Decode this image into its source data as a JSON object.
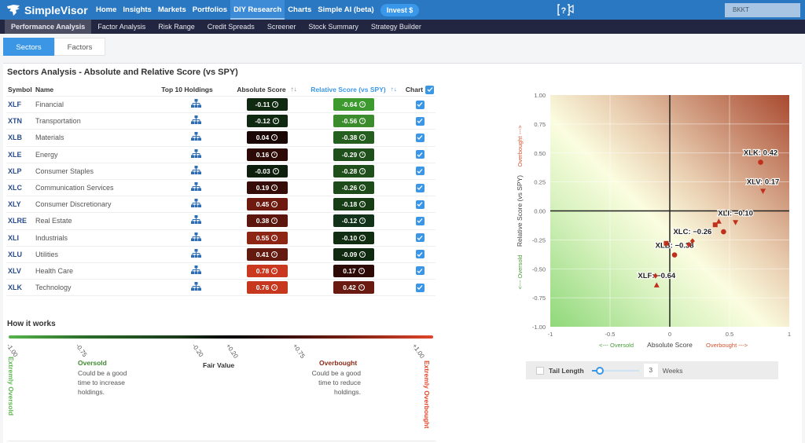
{
  "topnav": {
    "brand": "SimpleVisor",
    "items": [
      {
        "label": "Home",
        "active": false
      },
      {
        "label": "Insights",
        "active": false
      },
      {
        "label": "Markets",
        "active": false
      },
      {
        "label": "Portfolios",
        "active": false
      },
      {
        "label": "DIY Research",
        "active": true
      },
      {
        "label": "Charts",
        "active": false
      },
      {
        "label": "Simple AI (beta)",
        "active": false
      }
    ],
    "invest_button": "Invest $",
    "help_icon": "help-video-icon",
    "account": "BKKT"
  },
  "subnav": {
    "items": [
      {
        "label": "Performance Analysis",
        "active": true
      },
      {
        "label": "Factor Analysis",
        "active": false
      },
      {
        "label": "Risk Range",
        "active": false
      },
      {
        "label": "Credit Spreads",
        "active": false
      },
      {
        "label": "Screener",
        "active": false
      },
      {
        "label": "Stock Summary",
        "active": false
      },
      {
        "label": "Strategy Builder",
        "active": false
      }
    ]
  },
  "tabs": [
    {
      "label": "Sectors",
      "active": true
    },
    {
      "label": "Factors",
      "active": false
    }
  ],
  "panel": {
    "title": "Sectors Analysis - Absolute and Relative Score (vs SPY)"
  },
  "table": {
    "headers": {
      "symbol": "Symbol",
      "name": "Name",
      "holdings": "Top 10 Holdings",
      "absolute": "Absolute Score",
      "relative": "Relative Score (vs SPY)",
      "chart": "Chart"
    },
    "rows": [
      {
        "symbol": "XLF",
        "name": "Financial",
        "abs": "-0.11",
        "rel": "-0.64",
        "abs_color": "#0f2a10",
        "rel_color": "#3d9a2e",
        "checked": true
      },
      {
        "symbol": "XTN",
        "name": "Transportation",
        "abs": "-0.12",
        "rel": "-0.56",
        "abs_color": "#0f2a10",
        "rel_color": "#3a8c2c",
        "checked": true
      },
      {
        "symbol": "XLB",
        "name": "Materials",
        "abs": "0.04",
        "rel": "-0.38",
        "abs_color": "#1a0605",
        "rel_color": "#255f20",
        "checked": true
      },
      {
        "symbol": "XLE",
        "name": "Energy",
        "abs": "0.16",
        "rel": "-0.29",
        "abs_color": "#2e0a07",
        "rel_color": "#1f4f1b",
        "checked": true
      },
      {
        "symbol": "XLP",
        "name": "Consumer Staples",
        "abs": "-0.03",
        "rel": "-0.28",
        "abs_color": "#0d1f0d",
        "rel_color": "#1f4f1b",
        "checked": true
      },
      {
        "symbol": "XLC",
        "name": "Communication Services",
        "abs": "0.19",
        "rel": "-0.26",
        "abs_color": "#360c08",
        "rel_color": "#1e4b1a",
        "checked": true
      },
      {
        "symbol": "XLY",
        "name": "Consumer Discretionary",
        "abs": "0.45",
        "rel": "-0.18",
        "abs_color": "#6e1a10",
        "rel_color": "#173d15",
        "checked": true
      },
      {
        "symbol": "XLRE",
        "name": "Real Estate",
        "abs": "0.38",
        "rel": "-0.12",
        "abs_color": "#5c160d",
        "rel_color": "#12321a",
        "checked": true
      },
      {
        "symbol": "XLI",
        "name": "Industrials",
        "abs": "0.55",
        "rel": "-0.10",
        "abs_color": "#8e2414",
        "rel_color": "#112e12",
        "checked": true
      },
      {
        "symbol": "XLU",
        "name": "Utilities",
        "abs": "0.41",
        "rel": "-0.09",
        "abs_color": "#641a0f",
        "rel_color": "#0f2a10",
        "checked": true
      },
      {
        "symbol": "XLV",
        "name": "Health Care",
        "abs": "0.78",
        "rel": "0.17",
        "abs_color": "#c9381f",
        "rel_color": "#2e0a07",
        "checked": true
      },
      {
        "symbol": "XLK",
        "name": "Technology",
        "abs": "0.76",
        "rel": "0.42",
        "abs_color": "#c6371e",
        "rel_color": "#6a1a10",
        "checked": true
      }
    ]
  },
  "how_it_works": {
    "title": "How it works",
    "ticks": [
      "-1.00",
      "-0.75",
      "-0.20",
      "+0.20",
      "+0.75",
      "+1.00"
    ],
    "extremely_oversold": "Extremly Oversold",
    "extremely_overbought": "Extremly Overbought",
    "oversold_title": "Oversold",
    "oversold_text": "Could be a good time to increase holdings.",
    "fair_value": "Fair Value",
    "overbought_title": "Overbought",
    "overbought_text": "Could be a good time to reduce holdings."
  },
  "tail": {
    "label": "Tail Length",
    "value": "3",
    "unit": "Weeks"
  },
  "chart_data": {
    "type": "scatter",
    "title": "",
    "xlabel": "Absolute Score",
    "ylabel": "Relative Score (vs SPY)",
    "x_left_hint": "<--- Oversold",
    "x_right_hint": "Overbought --->",
    "y_bottom_hint": "<--- Oversold",
    "y_top_hint": "Overbought --->",
    "xlim": [
      -1,
      1
    ],
    "ylim": [
      -1,
      1
    ],
    "xticks": [
      "-1",
      "-0.5",
      "0",
      "0.5",
      "1"
    ],
    "yticks": [
      "1.00",
      "0.75",
      "0.50",
      "0.25",
      "0.00",
      "-0.25",
      "-0.50",
      "-0.75",
      "-1.00"
    ],
    "grid": true,
    "points": [
      {
        "symbol": "XLF",
        "x": -0.11,
        "y": -0.64,
        "marker": "triangle-up",
        "label": "XLF: -0.64"
      },
      {
        "symbol": "XTN",
        "x": -0.12,
        "y": -0.56,
        "marker": "diamond",
        "label": ""
      },
      {
        "symbol": "XLB",
        "x": 0.04,
        "y": -0.38,
        "marker": "circle",
        "label": "XLB: -0.38"
      },
      {
        "symbol": "XLE",
        "x": 0.16,
        "y": -0.29,
        "marker": "diamond",
        "label": ""
      },
      {
        "symbol": "XLP",
        "x": -0.03,
        "y": -0.28,
        "marker": "square",
        "label": ""
      },
      {
        "symbol": "XLC",
        "x": 0.19,
        "y": -0.26,
        "marker": "diamond",
        "label": "XLC: -0.26"
      },
      {
        "symbol": "XLY",
        "x": 0.45,
        "y": -0.18,
        "marker": "circle",
        "label": ""
      },
      {
        "symbol": "XLRE",
        "x": 0.38,
        "y": -0.12,
        "marker": "square",
        "label": ""
      },
      {
        "symbol": "XLI",
        "x": 0.55,
        "y": -0.1,
        "marker": "triangle-down",
        "label": "XLI: -0.10"
      },
      {
        "symbol": "XLU",
        "x": 0.41,
        "y": -0.09,
        "marker": "triangle-up",
        "label": ""
      },
      {
        "symbol": "XLV",
        "x": 0.78,
        "y": 0.17,
        "marker": "triangle-down",
        "label": "XLV: 0.17"
      },
      {
        "symbol": "XLK",
        "x": 0.76,
        "y": 0.42,
        "marker": "circle",
        "label": "XLK: 0.42"
      }
    ],
    "marker_color": "#c0301c"
  }
}
